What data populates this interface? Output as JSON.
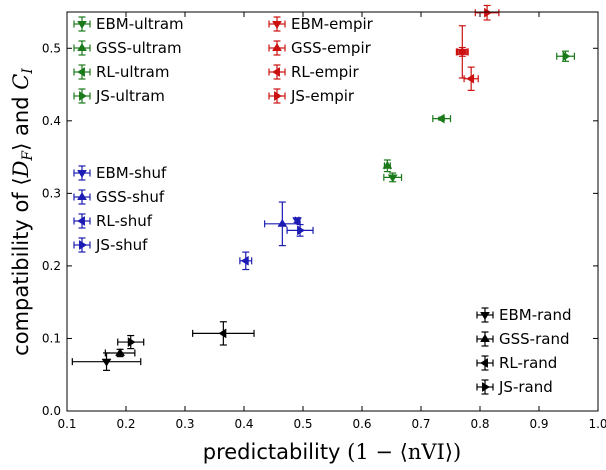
{
  "chart_data": {
    "type": "scatter",
    "xlabel": "predictability (1 − ⟨nVI⟩)",
    "ylabel": "compatibility of ⟨D_F⟩ and C_I",
    "xlim": [
      0.1,
      1.0
    ],
    "ylim": [
      0.0,
      0.55
    ],
    "xticks": [
      "0.1",
      "0.2",
      "0.3",
      "0.4",
      "0.5",
      "0.6",
      "0.7",
      "0.8",
      "0.9",
      "1.0"
    ],
    "yticks": [
      "0.0",
      "0.1",
      "0.2",
      "0.3",
      "0.4",
      "0.5"
    ],
    "grid": false,
    "groups": [
      {
        "key": "ultram",
        "color": "#1a7a1a",
        "legend": "top-left",
        "series": [
          {
            "name": "EBM-ultram",
            "marker": "tri-down",
            "x": 0.652,
            "y": 0.322,
            "xerr": 0.015,
            "yerr": 0.006
          },
          {
            "name": "GSS-ultram",
            "marker": "tri-up",
            "x": 0.643,
            "y": 0.338,
            "xerr": 0.005,
            "yerr": 0.008
          },
          {
            "name": "RL-ultram",
            "marker": "tri-left",
            "x": 0.735,
            "y": 0.403,
            "xerr": 0.015,
            "yerr": 0.002
          },
          {
            "name": "JS-ultram",
            "marker": "tri-right",
            "x": 0.945,
            "y": 0.489,
            "xerr": 0.015,
            "yerr": 0.007
          }
        ]
      },
      {
        "key": "empir",
        "color": "#cc1111",
        "legend": "top-middle",
        "series": [
          {
            "name": "EBM-empir",
            "marker": "tri-down",
            "x": 0.77,
            "y": 0.495,
            "xerr": 0.01,
            "yerr": 0.036
          },
          {
            "name": "GSS-empir",
            "marker": "tri-up",
            "x": 0.77,
            "y": 0.495,
            "xerr": 0.008,
            "yerr": 0.006
          },
          {
            "name": "RL-empir",
            "marker": "tri-left",
            "x": 0.785,
            "y": 0.458,
            "xerr": 0.012,
            "yerr": 0.016
          },
          {
            "name": "JS-empir",
            "marker": "tri-right",
            "x": 0.812,
            "y": 0.549,
            "xerr": 0.02,
            "yerr": 0.01
          }
        ]
      },
      {
        "key": "shuf",
        "color": "#1c1cb4",
        "legend": "middle-left",
        "series": [
          {
            "name": "EBM-shuf",
            "marker": "tri-down",
            "x": 0.49,
            "y": 0.263,
            "xerr": 0.003,
            "yerr": 0.003
          },
          {
            "name": "GSS-shuf",
            "marker": "tri-up",
            "x": 0.465,
            "y": 0.258,
            "xerr": 0.03,
            "yerr": 0.03
          },
          {
            "name": "RL-shuf",
            "marker": "tri-left",
            "x": 0.403,
            "y": 0.207,
            "xerr": 0.01,
            "yerr": 0.012
          },
          {
            "name": "JS-shuf",
            "marker": "tri-right",
            "x": 0.495,
            "y": 0.249,
            "xerr": 0.022,
            "yerr": 0.008
          }
        ]
      },
      {
        "key": "rand",
        "color": "#000000",
        "legend": "bottom-right",
        "series": [
          {
            "name": "EBM-rand",
            "marker": "tri-down",
            "x": 0.167,
            "y": 0.068,
            "xerr": 0.058,
            "yerr": 0.012
          },
          {
            "name": "GSS-rand",
            "marker": "tri-up",
            "x": 0.19,
            "y": 0.08,
            "xerr": 0.025,
            "yerr": 0.005
          },
          {
            "name": "RL-rand",
            "marker": "tri-left",
            "x": 0.365,
            "y": 0.107,
            "xerr": 0.052,
            "yerr": 0.016
          },
          {
            "name": "JS-rand",
            "marker": "tri-right",
            "x": 0.208,
            "y": 0.095,
            "xerr": 0.022,
            "yerr": 0.009
          }
        ]
      }
    ]
  }
}
